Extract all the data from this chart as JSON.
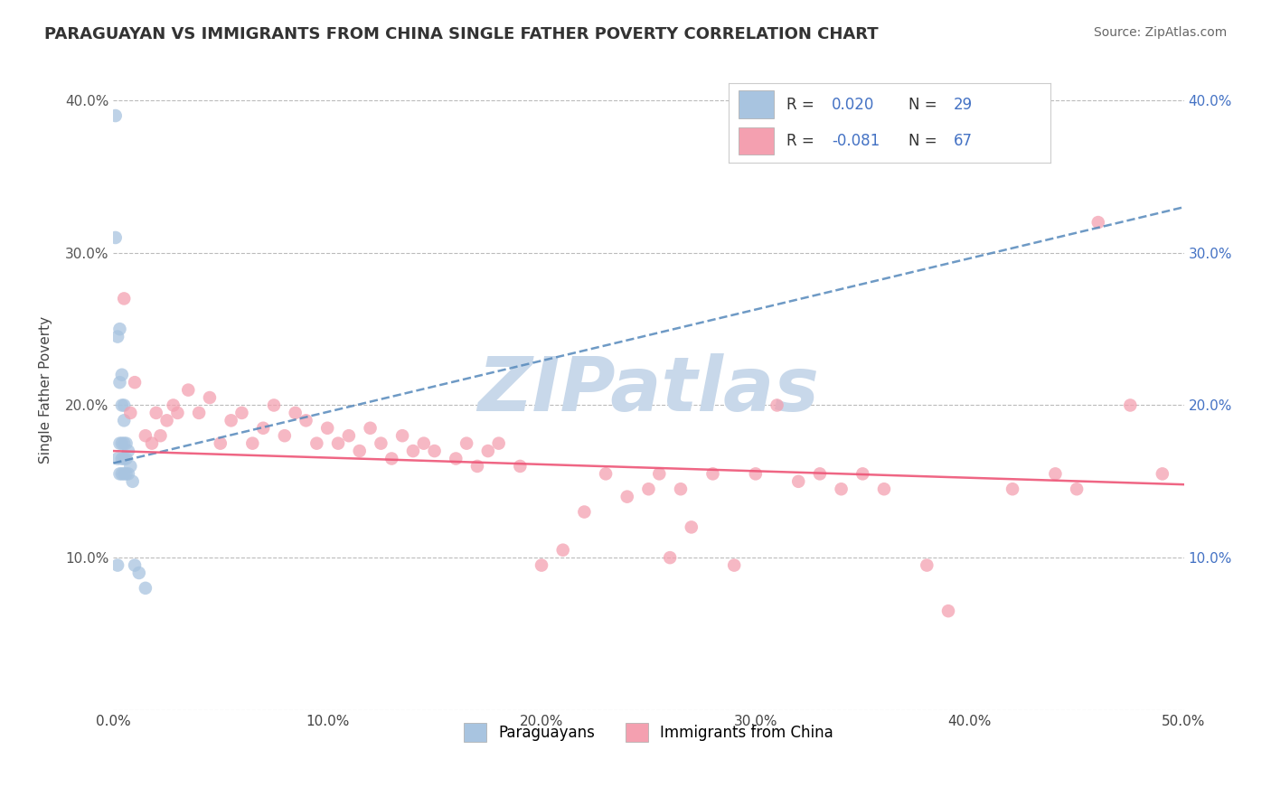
{
  "title": "PARAGUAYAN VS IMMIGRANTS FROM CHINA SINGLE FATHER POVERTY CORRELATION CHART",
  "source": "Source: ZipAtlas.com",
  "ylabel": "Single Father Poverty",
  "r_paraguayan": 0.02,
  "n_paraguayan": 29,
  "r_china": -0.081,
  "n_china": 67,
  "xlim": [
    0.0,
    0.5
  ],
  "ylim": [
    0.0,
    0.42
  ],
  "x_ticks": [
    0.0,
    0.1,
    0.2,
    0.3,
    0.4,
    0.5
  ],
  "y_ticks": [
    0.0,
    0.1,
    0.2,
    0.3,
    0.4
  ],
  "x_tick_labels": [
    "0.0%",
    "10.0%",
    "20.0%",
    "30.0%",
    "40.0%",
    "50.0%"
  ],
  "y_tick_labels_left": [
    "",
    "10.0%",
    "20.0%",
    "30.0%",
    "40.0%"
  ],
  "y_tick_labels_right": [
    "",
    "10.0%",
    "20.0%",
    "30.0%",
    "40.0%"
  ],
  "color_paraguayan": "#a8c4e0",
  "color_china": "#f4a0b0",
  "trendline_paraguayan_color": "#5588bb",
  "trendline_china_color": "#ee5577",
  "watermark_color": "#c8d8ea",
  "background_color": "#ffffff",
  "paraguayan_x": [
    0.001,
    0.001,
    0.002,
    0.002,
    0.002,
    0.003,
    0.003,
    0.003,
    0.003,
    0.004,
    0.004,
    0.004,
    0.004,
    0.004,
    0.005,
    0.005,
    0.005,
    0.005,
    0.005,
    0.006,
    0.006,
    0.006,
    0.007,
    0.007,
    0.008,
    0.009,
    0.01,
    0.012,
    0.015
  ],
  "paraguayan_y": [
    0.39,
    0.31,
    0.245,
    0.165,
    0.095,
    0.25,
    0.215,
    0.175,
    0.155,
    0.22,
    0.2,
    0.175,
    0.165,
    0.155,
    0.2,
    0.19,
    0.175,
    0.165,
    0.155,
    0.175,
    0.165,
    0.155,
    0.17,
    0.155,
    0.16,
    0.15,
    0.095,
    0.09,
    0.08
  ],
  "china_x": [
    0.005,
    0.008,
    0.01,
    0.015,
    0.018,
    0.02,
    0.022,
    0.025,
    0.028,
    0.03,
    0.035,
    0.04,
    0.045,
    0.05,
    0.055,
    0.06,
    0.065,
    0.07,
    0.075,
    0.08,
    0.085,
    0.09,
    0.095,
    0.1,
    0.105,
    0.11,
    0.115,
    0.12,
    0.125,
    0.13,
    0.135,
    0.14,
    0.145,
    0.15,
    0.16,
    0.165,
    0.17,
    0.175,
    0.18,
    0.19,
    0.2,
    0.21,
    0.22,
    0.23,
    0.24,
    0.25,
    0.255,
    0.26,
    0.265,
    0.27,
    0.28,
    0.29,
    0.3,
    0.31,
    0.32,
    0.33,
    0.34,
    0.35,
    0.36,
    0.38,
    0.39,
    0.42,
    0.44,
    0.45,
    0.46,
    0.475,
    0.49
  ],
  "china_y": [
    0.27,
    0.195,
    0.215,
    0.18,
    0.175,
    0.195,
    0.18,
    0.19,
    0.2,
    0.195,
    0.21,
    0.195,
    0.205,
    0.175,
    0.19,
    0.195,
    0.175,
    0.185,
    0.2,
    0.18,
    0.195,
    0.19,
    0.175,
    0.185,
    0.175,
    0.18,
    0.17,
    0.185,
    0.175,
    0.165,
    0.18,
    0.17,
    0.175,
    0.17,
    0.165,
    0.175,
    0.16,
    0.17,
    0.175,
    0.16,
    0.095,
    0.105,
    0.13,
    0.155,
    0.14,
    0.145,
    0.155,
    0.1,
    0.145,
    0.12,
    0.155,
    0.095,
    0.155,
    0.2,
    0.15,
    0.155,
    0.145,
    0.155,
    0.145,
    0.095,
    0.065,
    0.145,
    0.155,
    0.145,
    0.32,
    0.2,
    0.155
  ],
  "trendline_paraguayan_x0": 0.0,
  "trendline_paraguayan_x1": 0.5,
  "trendline_paraguayan_y0": 0.162,
  "trendline_paraguayan_y1": 0.33,
  "trendline_china_x0": 0.0,
  "trendline_china_x1": 0.5,
  "trendline_china_y0": 0.17,
  "trendline_china_y1": 0.148
}
